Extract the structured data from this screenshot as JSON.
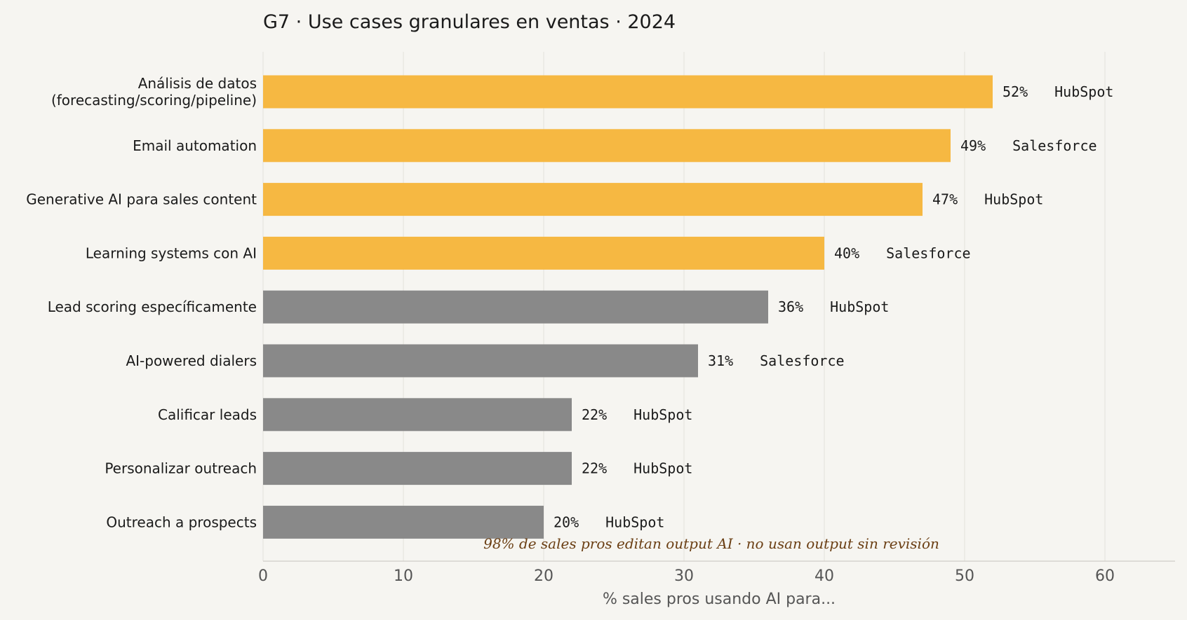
{
  "chart_data": {
    "type": "bar",
    "orientation": "horizontal",
    "title": "G7 · Use cases granulares en ventas · 2024",
    "xlabel": "% sales pros usando AI para...",
    "ylabel": "",
    "xlim": [
      0,
      65
    ],
    "xticks": [
      0,
      10,
      20,
      30,
      40,
      50,
      60
    ],
    "grid": "vertical",
    "value_suffix": "%",
    "categories": [
      [
        "Análisis de datos",
        "(forecasting/scoring/pipeline)"
      ],
      [
        "Email automation"
      ],
      [
        "Generative AI para sales content"
      ],
      [
        "Learning systems con AI"
      ],
      [
        "Lead scoring específicamente"
      ],
      [
        "AI-powered dialers"
      ],
      [
        "Calificar leads"
      ],
      [
        "Personalizar outreach"
      ],
      [
        "Outreach a prospects"
      ]
    ],
    "values": [
      52,
      49,
      47,
      40,
      36,
      31,
      22,
      22,
      20
    ],
    "sources": [
      "HubSpot",
      "Salesforce",
      "HubSpot",
      "Salesforce",
      "HubSpot",
      "Salesforce",
      "HubSpot",
      "HubSpot",
      "HubSpot"
    ],
    "highlighted": [
      true,
      true,
      true,
      true,
      false,
      false,
      false,
      false,
      false
    ],
    "colors": {
      "highlight": "#f6b842",
      "default": "#898989"
    },
    "annotation": "98% de sales pros editan output AI · no usan output sin revisión"
  }
}
